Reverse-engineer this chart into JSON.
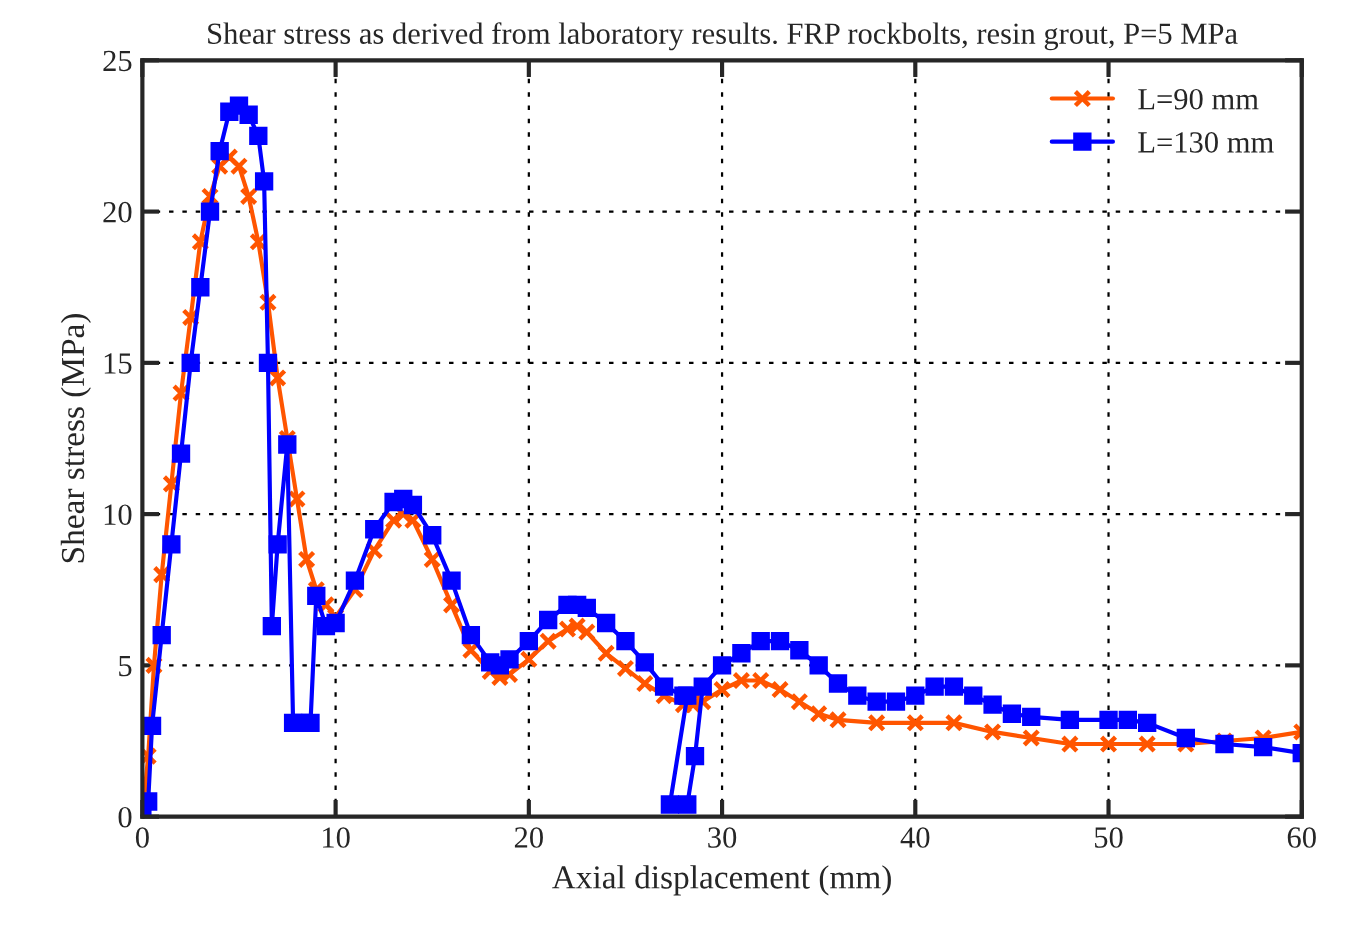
{
  "chart_data": {
    "type": "line",
    "title": "Shear stress as derived from laboratory results. FRP rockbolts, resin grout, P=5 MPa",
    "xlabel": "Axial displacement (mm)",
    "ylabel": "Shear stress (MPa)",
    "xlim": [
      0,
      60
    ],
    "ylim": [
      0,
      25
    ],
    "xticks": [
      0,
      10,
      20,
      30,
      40,
      50,
      60
    ],
    "yticks": [
      0,
      5,
      10,
      15,
      20,
      25
    ],
    "grid": true,
    "legend": "top right",
    "series": [
      {
        "name": "L=90 mm",
        "color": "#ff5500",
        "marker": "cross",
        "x": [
          0,
          0.3,
          0.6,
          1,
          1.5,
          2,
          2.5,
          3,
          3.5,
          4,
          4.5,
          5,
          5.5,
          6,
          6.5,
          7,
          7.5,
          8,
          8.5,
          9,
          9.5,
          10,
          11,
          12,
          13,
          13.5,
          14,
          15,
          16,
          17,
          18,
          18.5,
          19,
          20,
          21,
          22,
          22.5,
          23,
          24,
          25,
          26,
          27,
          28,
          28.5,
          29,
          30,
          31,
          32,
          33,
          34,
          35,
          36,
          38,
          40,
          42,
          44,
          46,
          48,
          50,
          52,
          54,
          56,
          58,
          60
        ],
        "values": [
          0,
          2,
          5,
          8,
          11,
          14,
          16.5,
          19,
          20.5,
          21.5,
          21.8,
          21.5,
          20.5,
          19,
          17,
          14.5,
          12.5,
          10.5,
          8.5,
          7.5,
          7,
          6.6,
          7.5,
          8.8,
          9.8,
          10,
          9.8,
          8.5,
          7,
          5.5,
          4.8,
          4.6,
          4.7,
          5.2,
          5.8,
          6.2,
          6.3,
          6.1,
          5.4,
          4.9,
          4.4,
          4,
          3.7,
          3.7,
          3.8,
          4.2,
          4.5,
          4.5,
          4.2,
          3.8,
          3.4,
          3.2,
          3.1,
          3.1,
          3.1,
          2.8,
          2.6,
          2.4,
          2.4,
          2.4,
          2.4,
          2.5,
          2.6,
          2.8
        ]
      },
      {
        "name": "L=130 mm",
        "color": "#0000ff",
        "marker": "square",
        "x": [
          0,
          0.3,
          0.5,
          1,
          1.5,
          2,
          2.5,
          3,
          3.5,
          4,
          4.5,
          5,
          5.5,
          6,
          6.3,
          6.5,
          6.7,
          7,
          7.5,
          7.8,
          8.3,
          8.7,
          9,
          9.5,
          10,
          11,
          12,
          13,
          13.5,
          14,
          15,
          16,
          17,
          18,
          18.5,
          19,
          20,
          21,
          22,
          22.5,
          23,
          24,
          25,
          26,
          27,
          28,
          28.2,
          27.3,
          28.2,
          28.6,
          29,
          30,
          31,
          32,
          33,
          34,
          35,
          36,
          37,
          38,
          39,
          40,
          41,
          42,
          43,
          44,
          45,
          46,
          48,
          50,
          51,
          52,
          54,
          56,
          58,
          60
        ],
        "values": [
          0,
          0.5,
          3,
          6,
          9,
          12,
          15,
          17.5,
          20,
          22,
          23.3,
          23.5,
          23.2,
          22.5,
          21,
          15,
          6.3,
          9,
          12.3,
          3.1,
          3.1,
          3.1,
          7.3,
          6.3,
          6.4,
          7.8,
          9.5,
          10.4,
          10.5,
          10.3,
          9.3,
          7.8,
          6,
          5.1,
          5,
          5.2,
          5.8,
          6.5,
          7,
          7,
          6.9,
          6.4,
          5.8,
          5.1,
          4.3,
          4,
          4,
          0.4,
          0.4,
          2,
          4.3,
          5,
          5.4,
          5.8,
          5.8,
          5.5,
          5,
          4.4,
          4,
          3.8,
          3.8,
          4,
          4.3,
          4.3,
          4,
          3.7,
          3.4,
          3.3,
          3.2,
          3.2,
          3.2,
          3.1,
          2.6,
          2.4,
          2.3,
          2.1
        ]
      }
    ]
  }
}
